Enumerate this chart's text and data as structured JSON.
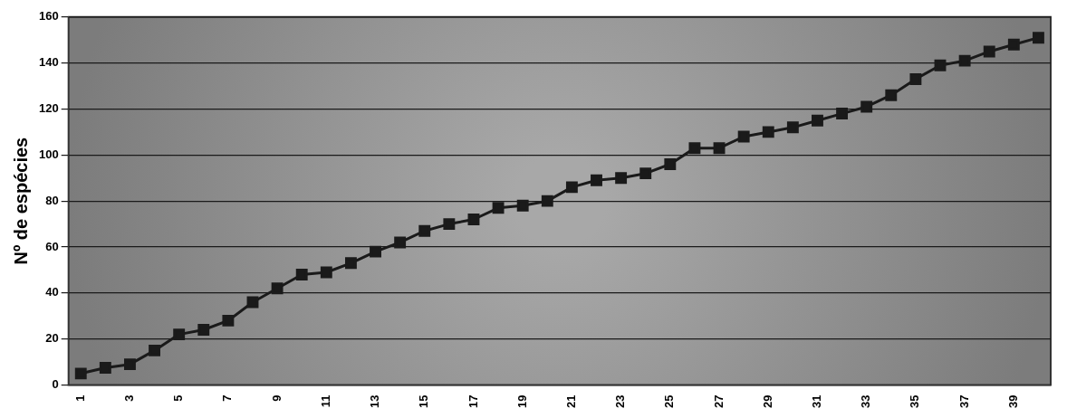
{
  "chart_data": {
    "type": "line",
    "ylabel": "Nº de espécies",
    "categories": [
      "1",
      null,
      "3",
      null,
      "5",
      null,
      "7",
      null,
      "9",
      null,
      "11",
      null,
      "13",
      null,
      "15",
      null,
      "17",
      null,
      "19",
      null,
      "21",
      null,
      "23",
      null,
      "25",
      null,
      "27",
      null,
      "29",
      null,
      "31",
      null,
      "33",
      null,
      "35",
      null,
      "37",
      null,
      "39",
      null
    ],
    "series": [
      {
        "color": "#1a1a1a",
        "values": [
          5,
          7.5,
          9,
          15,
          22,
          24,
          28,
          36,
          42,
          48,
          49,
          53,
          58,
          62,
          67,
          70,
          72,
          77,
          78,
          80,
          86,
          89,
          90,
          92,
          96,
          103,
          103,
          108,
          110,
          112,
          115,
          118,
          121,
          126,
          133,
          139,
          141,
          145,
          148,
          151
        ]
      }
    ],
    "ylim": [
      0,
      160
    ],
    "yticks": [
      0,
      20,
      40,
      60,
      80,
      100,
      120,
      140,
      160
    ],
    "grid": "y",
    "legend": false,
    "marker": "square",
    "line_style": "solid"
  }
}
